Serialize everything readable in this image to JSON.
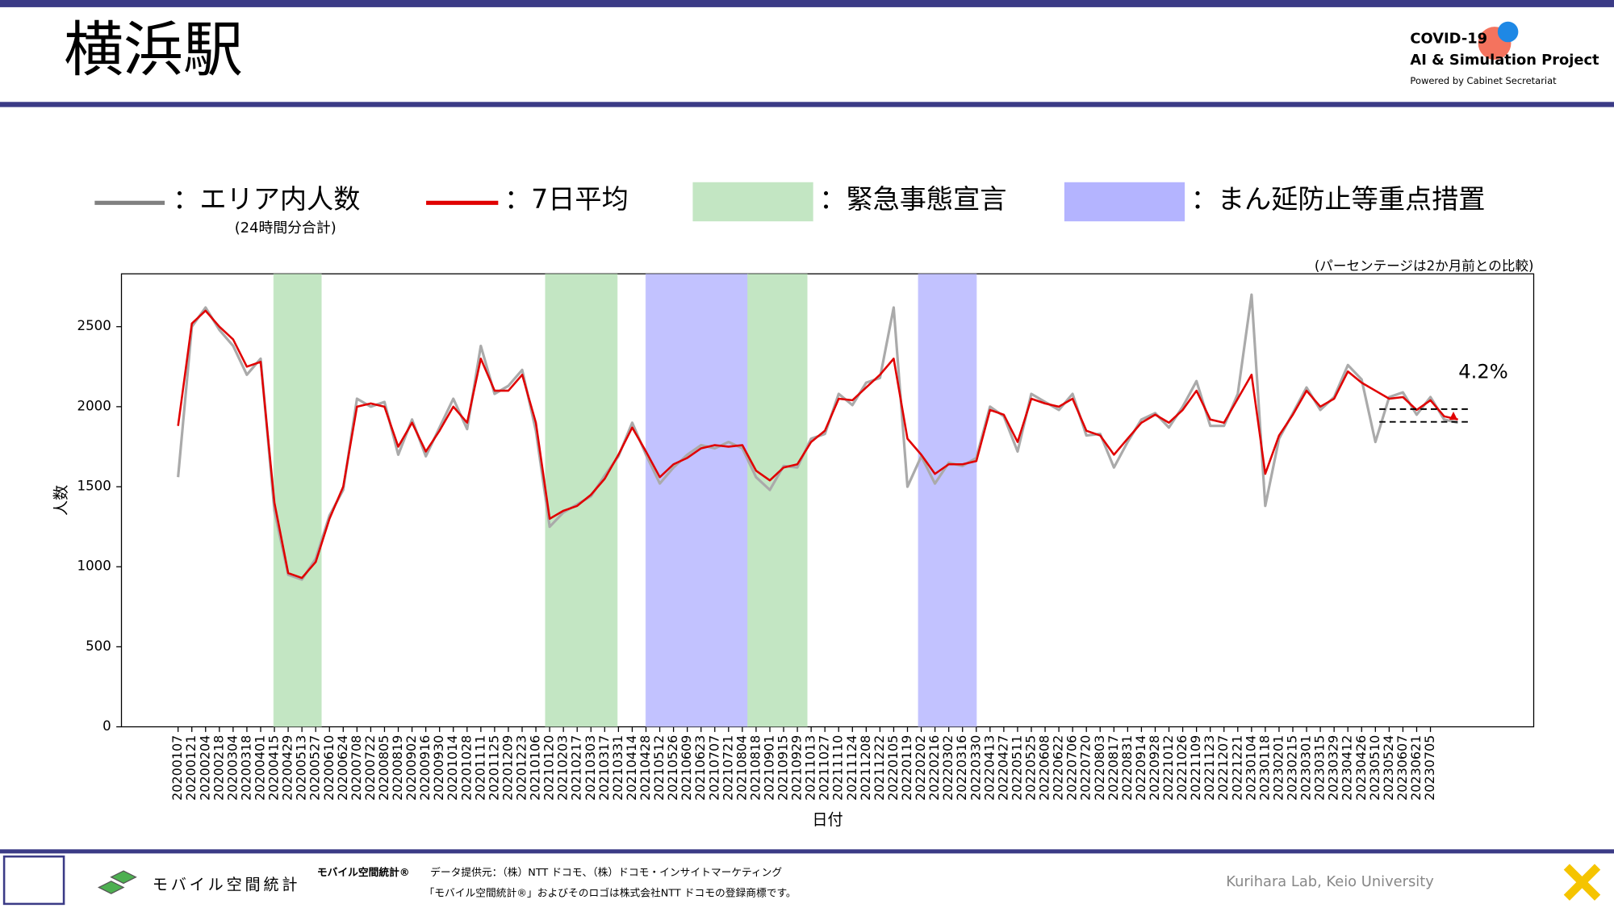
{
  "header": {
    "title": "横浜駅",
    "logo_line1": "COVID-19",
    "logo_line2": "AI & Simulation Project",
    "logo_line3": "Powered by Cabinet Secretariat"
  },
  "chart_data": {
    "type": "line",
    "x_label": "日付",
    "y_label": "人数",
    "note": "(パーセンテージは2か月前との比較)",
    "annotation": "4.2%",
    "legend_sub": "(24時間分合計)",
    "categories": [
      "20200107",
      "20200121",
      "20200204",
      "20200218",
      "20200304",
      "20200318",
      "20200401",
      "20200415",
      "20200429",
      "20200513",
      "20200527",
      "20200610",
      "20200624",
      "20200708",
      "20200722",
      "20200805",
      "20200819",
      "20200902",
      "20200916",
      "20200930",
      "20201014",
      "20201028",
      "20201111",
      "20201125",
      "20201209",
      "20201223",
      "20210106",
      "20210120",
      "20210203",
      "20210217",
      "20210303",
      "20210317",
      "20210331",
      "20210414",
      "20210428",
      "20210512",
      "20210526",
      "20210609",
      "20210623",
      "20210707",
      "20210721",
      "20210804",
      "20210818",
      "20210901",
      "20210915",
      "20210929",
      "20211013",
      "20211027",
      "20211110",
      "20211124",
      "20211208",
      "20211222",
      "20220105",
      "20220119",
      "20220202",
      "20220216",
      "20220302",
      "20220316",
      "20220330",
      "20220413",
      "20220427",
      "20220511",
      "20220525",
      "20220608",
      "20220622",
      "20220706",
      "20220720",
      "20220803",
      "20220817",
      "20220831",
      "20220914",
      "20220928",
      "20221012",
      "20221026",
      "20221109",
      "20221123",
      "20221207",
      "20221221",
      "20230104",
      "20230118",
      "20230201",
      "20230215",
      "20230301",
      "20230315",
      "20230329",
      "20230412",
      "20230426",
      "20230510",
      "20230524",
      "20230607",
      "20230621",
      "20230705",
      null,
      null
    ],
    "series": [
      {
        "name": "：エリア内人数",
        "color": "#aaaaaa",
        "legend_color": "#808080",
        "values": [
          1560,
          2500,
          2620,
          2480,
          2380,
          2200,
          2300,
          1350,
          950,
          920,
          1050,
          1320,
          1480,
          2050,
          2000,
          2030,
          1700,
          1920,
          1690,
          1870,
          2050,
          1860,
          2380,
          2080,
          2130,
          2230,
          1850,
          1250,
          1340,
          1390,
          1440,
          1570,
          1690,
          1900,
          1700,
          1520,
          1620,
          1700,
          1760,
          1740,
          1780,
          1740,
          1560,
          1480,
          1630,
          1620,
          1800,
          1830,
          2080,
          2010,
          2150,
          2180,
          2620,
          1500,
          1690,
          1520,
          1650,
          1630,
          1680,
          2000,
          1940,
          1720,
          2080,
          2030,
          1980,
          2080,
          1820,
          1830,
          1620,
          1780,
          1920,
          1960,
          1870,
          2000,
          2160,
          1880,
          1880,
          2080,
          2700,
          1380,
          1800,
          1960,
          2120,
          1980,
          2060,
          2260,
          2170,
          1780,
          2060,
          2090,
          1950,
          2060,
          1920,
          1900
        ]
      },
      {
        "name": "：7日平均",
        "color": "#e00000",
        "values": [
          1880,
          2520,
          2600,
          2500,
          2420,
          2250,
          2280,
          1400,
          960,
          930,
          1030,
          1300,
          1500,
          2000,
          2020,
          2000,
          1750,
          1900,
          1720,
          1850,
          2000,
          1900,
          2300,
          2100,
          2100,
          2200,
          1900,
          1300,
          1350,
          1380,
          1450,
          1550,
          1700,
          1870,
          1720,
          1560,
          1640,
          1680,
          1740,
          1760,
          1750,
          1760,
          1600,
          1540,
          1620,
          1640,
          1780,
          1850,
          2050,
          2040,
          2120,
          2200,
          2300,
          1800,
          1700,
          1580,
          1640,
          1640,
          1660,
          1980,
          1950,
          1780,
          2050,
          2020,
          2000,
          2050,
          1850,
          1820,
          1700,
          1800,
          1900,
          1950,
          1900,
          1980,
          2100,
          1920,
          1900,
          2050,
          2200,
          1580,
          1820,
          1950,
          2100,
          2000,
          2050,
          2220,
          2150,
          2100,
          2050,
          2060,
          1980,
          2040,
          1940,
          1920
        ]
      }
    ],
    "spans": [
      {
        "label": "：緊急事態宣言",
        "color": "#c3e6c3",
        "start": 6.96,
        "end": 10.4
      },
      {
        "label": "：まん延防止等重点措置",
        "color": "#c2c2ff",
        "start": 34.0,
        "end": 41.4
      },
      {
        "start": 26.7,
        "end": 31.9,
        "color": "#c3e6c3"
      },
      {
        "start": 41.4,
        "end": 45.7,
        "color": "#c3e6c3"
      },
      {
        "start": 53.8,
        "end": 58.0,
        "color": "#c2c2ff"
      }
    ],
    "comparison_lines": [
      1985,
      1905
    ],
    "ylim": [
      0,
      2830
    ],
    "yticks": [
      0,
      500,
      1000,
      1500,
      2000,
      2500
    ]
  },
  "footer": {
    "brand": "モバイル空間統計®",
    "provider": "データ提供元：（株）NTT ドコモ、（株）ドコモ・インサイトマーケティング",
    "trademark": "「モバイル空間統計®」およびそのロゴは株式会社NTT ドコモの登録商標です。",
    "logo_text": "モバイル空間統計",
    "credit": "Kurihara Lab, Keio University"
  }
}
